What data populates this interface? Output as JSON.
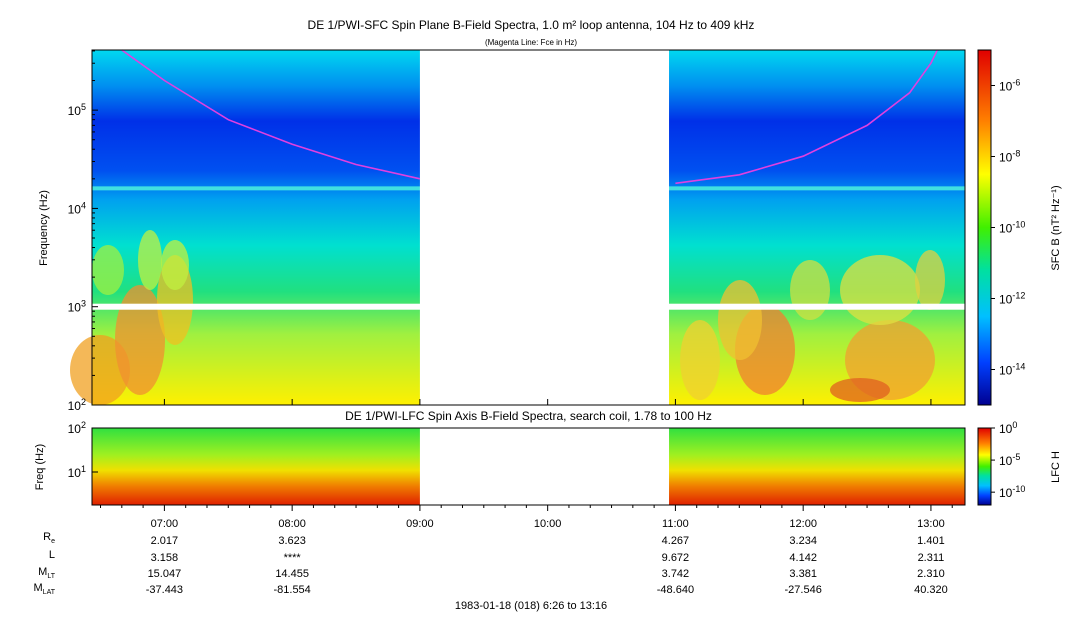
{
  "chart_data": [
    {
      "type": "heatmap",
      "title": "DE 1/PWI-SFC  Spin Plane B-Field Spectra, 1.0 m² loop antenna, 104 Hz to 409 kHz",
      "subtitle": "(Magenta Line: Fce in Hz)",
      "ylabel": "Frequency (Hz)",
      "y_scale": "log",
      "ylim": [
        100,
        409000
      ],
      "y_ticks": [
        "10^2",
        "10^3",
        "10^4",
        "10^5"
      ],
      "colorbar_label": "SFC B (nT² Hz⁻¹)",
      "colorbar_ticks": [
        "10^-6",
        "10^-8",
        "10^-10",
        "10^-12",
        "10^-14"
      ],
      "colorbar_range": [
        -15,
        -5
      ],
      "data_gap": [
        "09:00",
        "10:57"
      ],
      "fce_line": {
        "color": "#e040e0",
        "segments": [
          {
            "x": [
              "06:40",
              "07:00",
              "07:30",
              "08:00",
              "08:30",
              "09:00"
            ],
            "y": [
              409000,
              200000,
              80000,
              45000,
              28000,
              20000
            ]
          },
          {
            "x": [
              "11:00",
              "11:30",
              "12:00",
              "12:30",
              "12:50",
              "13:00",
              "13:03"
            ],
            "y": [
              18000,
              22000,
              34000,
              70000,
              150000,
              300000,
              409000
            ]
          }
        ]
      },
      "interference_lines_hz": [
        16000,
        1000
      ]
    },
    {
      "type": "heatmap",
      "title": "DE 1/PWI-LFC  Spin Axis B-Field Spectra, search coil, 1.78 to 100 Hz",
      "ylabel": "Freq (Hz)",
      "y_scale": "log",
      "ylim": [
        1.78,
        100
      ],
      "y_ticks": [
        "10^1",
        "10^2"
      ],
      "colorbar_label": "LFC H",
      "colorbar_ticks": [
        "10^0",
        "10^-5",
        "10^-10"
      ],
      "colorbar_range": [
        -12,
        0
      ],
      "data_gap": [
        "09:00",
        "10:57"
      ]
    }
  ],
  "time_axis": {
    "range": [
      "06:26",
      "13:16"
    ],
    "ticks": [
      "07:00",
      "08:00",
      "09:00",
      "10:00",
      "11:00",
      "12:00",
      "13:00"
    ]
  },
  "ephemeris": {
    "labels": [
      {
        "main": "R",
        "sub": "e"
      },
      {
        "main": "L",
        "sub": ""
      },
      {
        "main": "M",
        "sub": "LT"
      },
      {
        "main": "M",
        "sub": "LAT"
      }
    ],
    "columns": [
      {
        "time": "07:00",
        "values": [
          "2.017",
          "3.158",
          "15.047",
          "-37.443"
        ]
      },
      {
        "time": "08:00",
        "values": [
          "3.623",
          "****",
          "14.455",
          "-81.554"
        ]
      },
      {
        "time": "11:00",
        "values": [
          "4.267",
          "9.672",
          "3.742",
          "-48.640"
        ]
      },
      {
        "time": "12:00",
        "values": [
          "3.234",
          "4.142",
          "3.381",
          "-27.546"
        ]
      },
      {
        "time": "13:00",
        "values": [
          "1.401",
          "2.311",
          "2.310",
          "40.320"
        ]
      }
    ]
  },
  "footer": "1983-01-18 (018) 6:26 to 13:16"
}
